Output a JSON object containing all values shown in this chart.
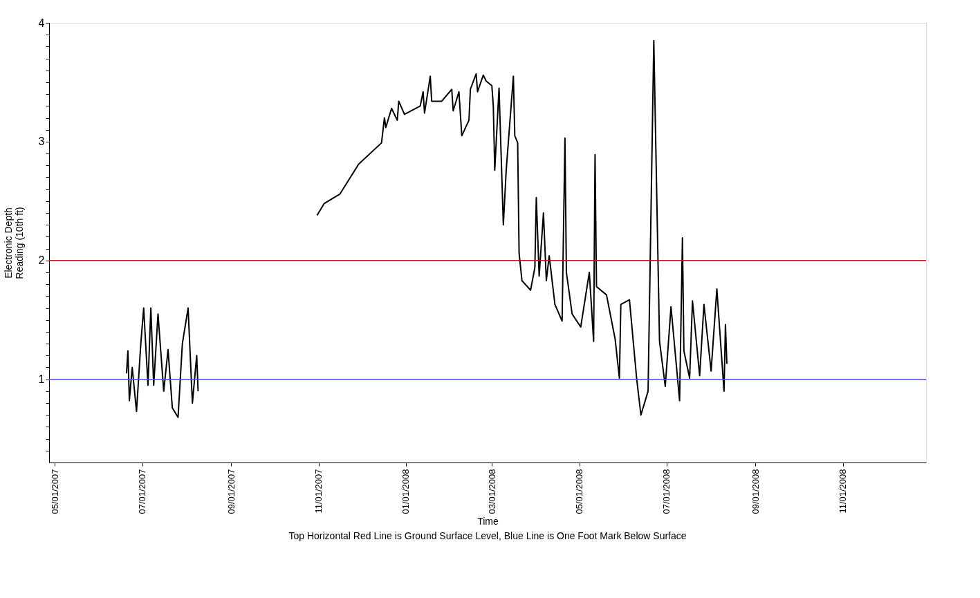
{
  "chart_data": {
    "type": "line",
    "xlabel": "Time",
    "ylabel": "Electronic Depth\nReading (10th ft)",
    "annotations": [
      "Top Horizontal Red Line is Ground Surface Level, Blue Line is One Foot Mark Below Surface"
    ],
    "xlim": [
      "2007-04-27",
      "2008-12-29"
    ],
    "xticks": [
      {
        "value": "2007-05-01",
        "label": "05/01/2007"
      },
      {
        "value": "2007-07-01",
        "label": "07/01/2007"
      },
      {
        "value": "2007-09-01",
        "label": "09/01/2007"
      },
      {
        "value": "2007-11-01",
        "label": "11/01/2007"
      },
      {
        "value": "2008-01-01",
        "label": "01/01/2008"
      },
      {
        "value": "2008-03-01",
        "label": "03/01/2008"
      },
      {
        "value": "2008-05-01",
        "label": "05/01/2008"
      },
      {
        "value": "2008-07-01",
        "label": "07/01/2008"
      },
      {
        "value": "2008-09-01",
        "label": "09/01/2008"
      },
      {
        "value": "2008-11-01",
        "label": "11/01/2008"
      }
    ],
    "ylim": [
      0.3,
      4
    ],
    "yticks": [
      {
        "value": 0.4,
        "label": null
      },
      {
        "value": 0.5,
        "label": null
      },
      {
        "value": 0.6,
        "label": null
      },
      {
        "value": 0.7,
        "label": null
      },
      {
        "value": 0.8,
        "label": null
      },
      {
        "value": 0.9,
        "label": null
      },
      1,
      {
        "value": 1.1,
        "label": null
      },
      {
        "value": 1.2,
        "label": null
      },
      {
        "value": 1.3,
        "label": null
      },
      {
        "value": 1.4,
        "label": null
      },
      {
        "value": 1.5,
        "label": null
      },
      {
        "value": 1.6,
        "label": null
      },
      {
        "value": 1.7,
        "label": null
      },
      {
        "value": 1.8,
        "label": null
      },
      {
        "value": 1.9,
        "label": null
      },
      2,
      {
        "value": 2.1,
        "label": null
      },
      {
        "value": 2.2,
        "label": null
      },
      {
        "value": 2.3,
        "label": null
      },
      {
        "value": 2.4,
        "label": null
      },
      {
        "value": 2.5,
        "label": null
      },
      {
        "value": 2.6,
        "label": null
      },
      {
        "value": 2.7,
        "label": null
      },
      {
        "value": 2.8,
        "label": null
      },
      {
        "value": 2.9,
        "label": null
      },
      3,
      {
        "value": 3.1,
        "label": null
      },
      {
        "value": 3.2,
        "label": null
      },
      {
        "value": 3.3,
        "label": null
      },
      {
        "value": 3.4,
        "label": null
      },
      {
        "value": 3.5,
        "label": null
      },
      {
        "value": 3.6,
        "label": null
      },
      {
        "value": 3.7,
        "label": null
      },
      {
        "value": 3.8,
        "label": null
      },
      {
        "value": 3.9,
        "label": null
      },
      4
    ],
    "x": [
      "2007-06-20",
      "2007-06-21",
      "2007-06-22",
      "2007-06-24",
      "2007-06-27",
      "2007-06-30",
      "2007-07-02",
      "2007-07-05",
      "2007-07-07",
      "2007-07-09",
      "2007-07-12",
      "2007-07-16",
      "2007-07-19",
      "2007-07-22",
      "2007-07-26",
      "2007-07-29",
      "2007-08-02",
      "2007-08-05",
      "2007-08-08",
      "2007-08-09",
      "2007-09-20",
      "2007-10-31",
      "2007-11-05",
      "2007-11-16",
      "2007-11-29",
      "2007-12-15",
      "2007-12-17",
      "2007-12-18",
      "2007-12-22",
      "2007-12-26",
      "2007-12-27",
      "2007-12-31",
      "2008-01-11",
      "2008-01-13",
      "2008-01-14",
      "2008-01-18",
      "2008-01-19",
      "2008-01-26",
      "2008-02-02",
      "2008-02-03",
      "2008-02-07",
      "2008-02-09",
      "2008-02-14",
      "2008-02-15",
      "2008-02-19",
      "2008-02-20",
      "2008-02-24",
      "2008-02-26",
      "2008-03-01",
      "2008-03-02",
      "2008-03-03",
      "2008-03-06",
      "2008-03-09",
      "2008-03-11",
      "2008-03-16",
      "2008-03-17",
      "2008-03-19",
      "2008-03-20",
      "2008-03-22",
      "2008-03-28",
      "2008-03-31",
      "2008-04-01",
      "2008-04-03",
      "2008-04-06",
      "2008-04-08",
      "2008-04-10",
      "2008-04-14",
      "2008-04-19",
      "2008-04-21",
      "2008-04-22",
      "2008-04-26",
      "2008-05-02",
      "2008-05-08",
      "2008-05-11",
      "2008-05-12",
      "2008-05-13",
      "2008-05-20",
      "2008-05-26",
      "2008-05-29",
      "2008-05-30",
      "2008-06-05",
      "2008-06-10",
      "2008-06-13",
      "2008-06-18",
      "2008-06-19",
      "2008-06-22",
      "2008-06-26",
      "2008-06-30",
      "2008-07-04",
      "2008-07-10",
      "2008-07-12",
      "2008-07-13",
      "2008-07-17",
      "2008-07-19",
      "2008-07-24",
      "2008-07-27",
      "2008-08-01",
      "2008-08-05",
      "2008-08-10",
      "2008-08-11",
      "2008-08-12"
    ],
    "series": [
      {
        "color": "#000000",
        "values": [
          1.05,
          1.24,
          0.82,
          1.1,
          0.73,
          1.3,
          1.6,
          0.95,
          1.6,
          0.95,
          1.55,
          0.9,
          1.25,
          0.76,
          0.68,
          1.3,
          1.6,
          0.8,
          1.2,
          0.9,
          null,
          2.38,
          2.48,
          2.56,
          2.81,
          2.99,
          3.2,
          3.12,
          3.28,
          3.18,
          3.34,
          3.23,
          3.3,
          3.42,
          3.24,
          3.55,
          3.34,
          3.34,
          3.44,
          3.26,
          3.42,
          3.05,
          3.18,
          3.44,
          3.57,
          3.42,
          3.56,
          3.51,
          3.47,
          3.3,
          2.76,
          3.45,
          2.3,
          2.76,
          3.55,
          3.05,
          2.99,
          2.06,
          1.83,
          1.75,
          1.94,
          2.53,
          1.87,
          2.4,
          1.83,
          2.04,
          1.63,
          1.49,
          3.03,
          1.9,
          1.55,
          1.44,
          1.9,
          1.32,
          2.89,
          1.78,
          1.71,
          1.34,
          1.01,
          1.63,
          1.67,
          1.01,
          0.7,
          0.9,
          1.63,
          3.85,
          1.32,
          0.94,
          1.61,
          0.82,
          2.19,
          1.24,
          1.01,
          1.66,
          1.03,
          1.63,
          1.07,
          1.76,
          0.9,
          1.46,
          1.13
        ]
      }
    ],
    "ref_lines": [
      {
        "axis": "y",
        "value": 2,
        "color": "#e00000"
      },
      {
        "axis": "y",
        "value": 1,
        "color": "#4b4bff"
      }
    ],
    "grid": false,
    "marker": "none",
    "line_style": "solid"
  }
}
